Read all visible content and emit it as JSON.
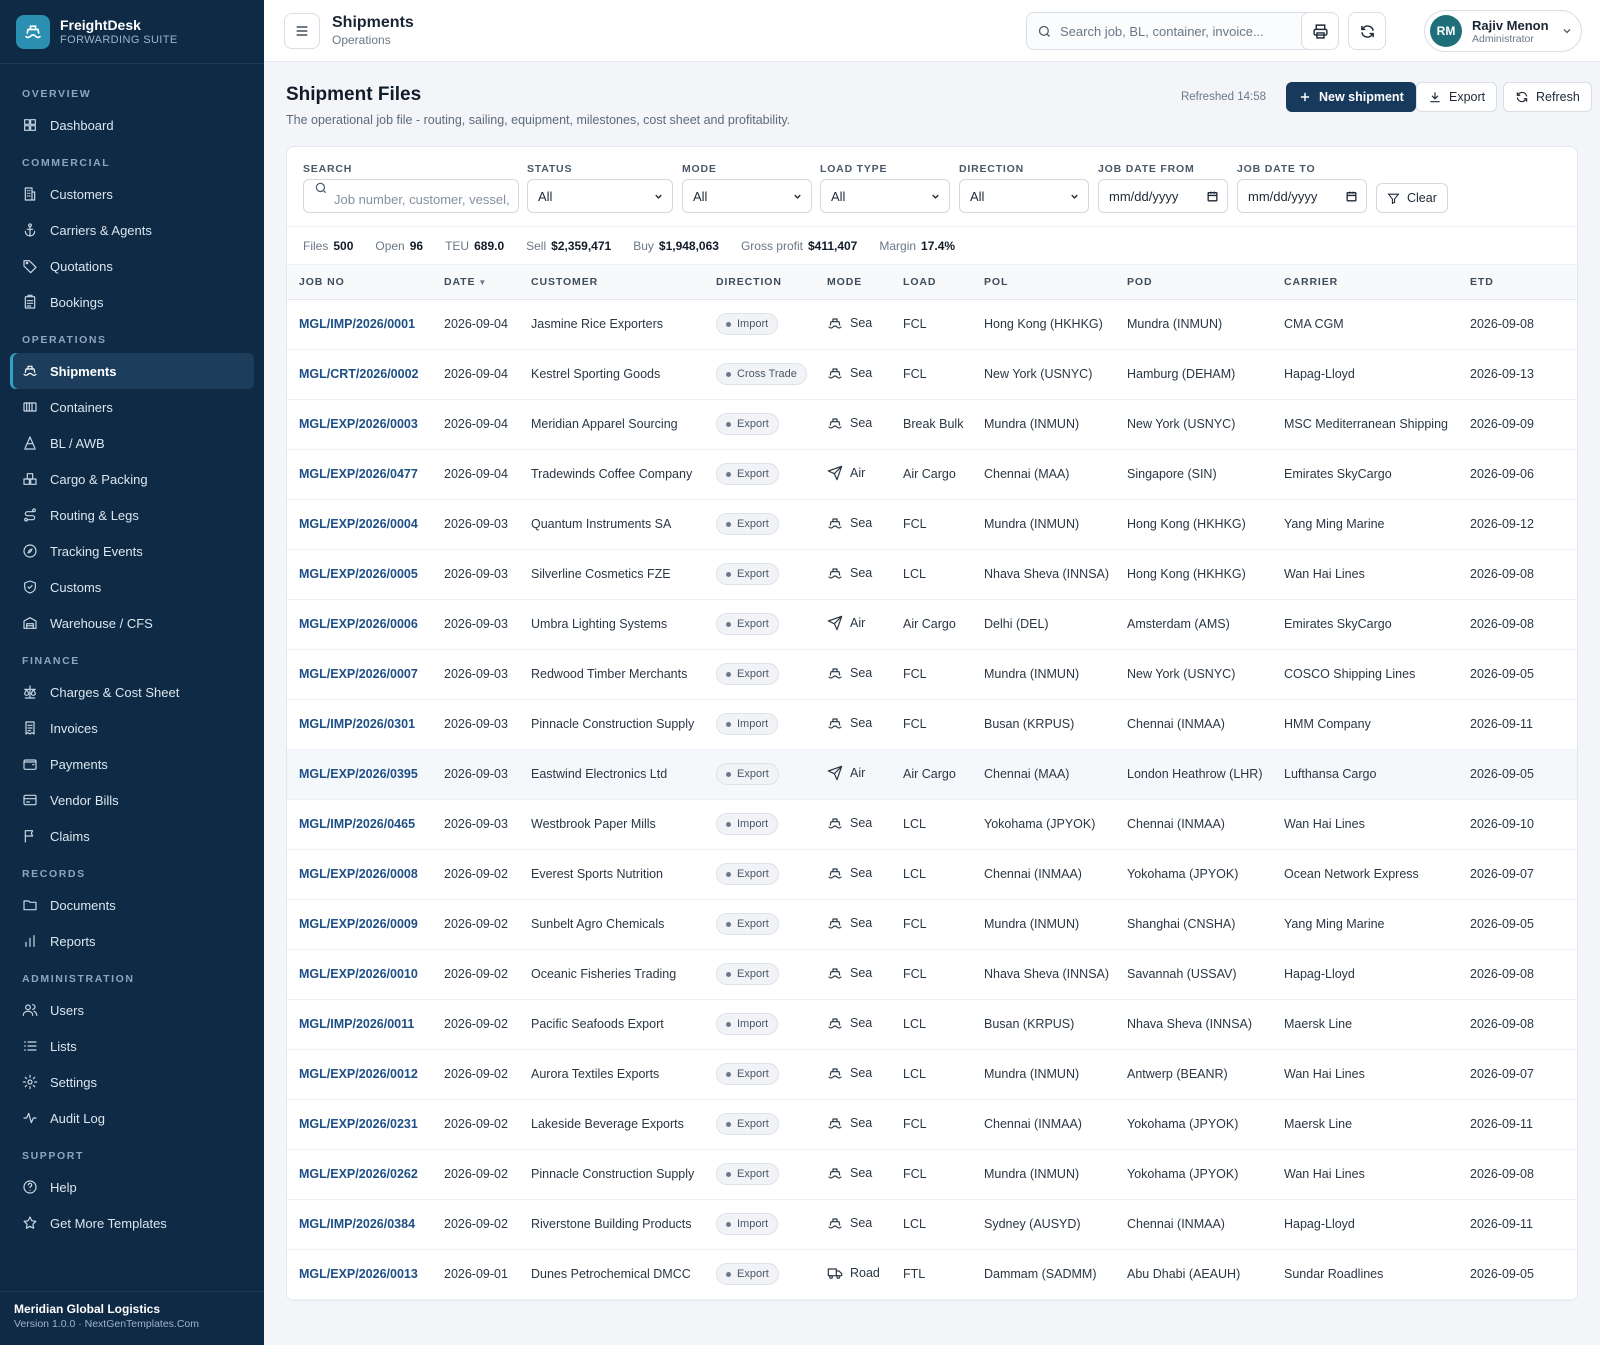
{
  "brand": {
    "name": "FreightDesk",
    "subtitle": "FORWARDING SUITE"
  },
  "sidebar": {
    "sections": [
      {
        "title": "OVERVIEW",
        "items": [
          {
            "label": "Dashboard",
            "icon": "dashboard-icon"
          }
        ]
      },
      {
        "title": "COMMERCIAL",
        "items": [
          {
            "label": "Customers",
            "icon": "building-icon"
          },
          {
            "label": "Carriers & Agents",
            "icon": "anchor-icon"
          },
          {
            "label": "Quotations",
            "icon": "tag-icon"
          },
          {
            "label": "Bookings",
            "icon": "clipboard-icon"
          }
        ]
      },
      {
        "title": "OPERATIONS",
        "items": [
          {
            "label": "Shipments",
            "icon": "ship-icon",
            "active": true
          },
          {
            "label": "Containers",
            "icon": "container-icon"
          },
          {
            "label": "BL / AWB",
            "icon": "bill-icon"
          },
          {
            "label": "Cargo & Packing",
            "icon": "boxes-icon"
          },
          {
            "label": "Routing & Legs",
            "icon": "route-icon"
          },
          {
            "label": "Tracking Events",
            "icon": "compass-icon"
          },
          {
            "label": "Customs",
            "icon": "shield-icon"
          },
          {
            "label": "Warehouse / CFS",
            "icon": "warehouse-icon"
          }
        ]
      },
      {
        "title": "FINANCE",
        "items": [
          {
            "label": "Charges & Cost Sheet",
            "icon": "scale-icon"
          },
          {
            "label": "Invoices",
            "icon": "invoice-icon"
          },
          {
            "label": "Payments",
            "icon": "wallet-icon"
          },
          {
            "label": "Vendor Bills",
            "icon": "card-icon"
          },
          {
            "label": "Claims",
            "icon": "flag-icon"
          }
        ]
      },
      {
        "title": "RECORDS",
        "items": [
          {
            "label": "Documents",
            "icon": "folder-icon"
          },
          {
            "label": "Reports",
            "icon": "bar-chart-icon"
          }
        ]
      },
      {
        "title": "ADMINISTRATION",
        "items": [
          {
            "label": "Users",
            "icon": "users-icon"
          },
          {
            "label": "Lists",
            "icon": "list-icon"
          },
          {
            "label": "Settings",
            "icon": "gear-icon"
          },
          {
            "label": "Audit Log",
            "icon": "activity-icon"
          }
        ]
      },
      {
        "title": "SUPPORT",
        "items": [
          {
            "label": "Help",
            "icon": "help-icon"
          },
          {
            "label": "Get More Templates",
            "icon": "star-icon"
          }
        ]
      }
    ],
    "footer": {
      "org": "Meridian Global Logistics",
      "version": "Version 1.0.0 · NextGenTemplates.Com"
    }
  },
  "topbar": {
    "title": "Shipments",
    "subtitle": "Operations",
    "search_placeholder": "Search job, BL, container, invoice...",
    "user": {
      "initials": "RM",
      "name": "Rajiv Menon",
      "role": "Administrator"
    }
  },
  "page": {
    "title": "Shipment Files",
    "description": "The operational job file - routing, sailing, equipment, milestones, cost sheet and profitability.",
    "refreshed": "Refreshed 14:58",
    "new_label": "New shipment",
    "export_label": "Export",
    "refresh_label": "Refresh"
  },
  "filters": {
    "search_label": "SEARCH",
    "search_placeholder": "Job number, customer, vessel, p",
    "status_label": "STATUS",
    "status_value": "All",
    "mode_label": "MODE",
    "mode_value": "All",
    "load_label": "LOAD TYPE",
    "load_value": "All",
    "direction_label": "DIRECTION",
    "direction_value": "All",
    "from_label": "JOB DATE FROM",
    "from_value": "mm/dd/yyyy",
    "to_label": "JOB DATE TO",
    "to_value": "mm/dd/yyyy",
    "clear_label": "Clear"
  },
  "stats": [
    {
      "label": "Files",
      "value": "500"
    },
    {
      "label": "Open",
      "value": "96"
    },
    {
      "label": "TEU",
      "value": "689.0"
    },
    {
      "label": "Sell",
      "value": "$2,359,471"
    },
    {
      "label": "Buy",
      "value": "$1,948,063"
    },
    {
      "label": "Gross profit",
      "value": "$411,407"
    },
    {
      "label": "Margin",
      "value": "17.4%"
    }
  ],
  "table": {
    "columns": [
      "JOB NO",
      "DATE",
      "CUSTOMER",
      "DIRECTION",
      "MODE",
      "LOAD",
      "POL",
      "POD",
      "CARRIER",
      "ETD"
    ],
    "rows": [
      [
        "MGL/IMP/2026/0001",
        "2026-09-04",
        "Jasmine Rice Exporters",
        "Import",
        "Sea",
        "FCL",
        "Hong Kong (HKHKG)",
        "Mundra (INMUN)",
        "CMA CGM",
        "2026-09-08"
      ],
      [
        "MGL/CRT/2026/0002",
        "2026-09-04",
        "Kestrel Sporting Goods",
        "Cross Trade",
        "Sea",
        "FCL",
        "New York (USNYC)",
        "Hamburg (DEHAM)",
        "Hapag-Lloyd",
        "2026-09-13"
      ],
      [
        "MGL/EXP/2026/0003",
        "2026-09-04",
        "Meridian Apparel Sourcing",
        "Export",
        "Sea",
        "Break Bulk",
        "Mundra (INMUN)",
        "New York (USNYC)",
        "MSC Mediterranean Shipping",
        "2026-09-09"
      ],
      [
        "MGL/EXP/2026/0477",
        "2026-09-04",
        "Tradewinds Coffee Company",
        "Export",
        "Air",
        "Air Cargo",
        "Chennai (MAA)",
        "Singapore (SIN)",
        "Emirates SkyCargo",
        "2026-09-06"
      ],
      [
        "MGL/EXP/2026/0004",
        "2026-09-03",
        "Quantum Instruments SA",
        "Export",
        "Sea",
        "FCL",
        "Mundra (INMUN)",
        "Hong Kong (HKHKG)",
        "Yang Ming Marine",
        "2026-09-12"
      ],
      [
        "MGL/EXP/2026/0005",
        "2026-09-03",
        "Silverline Cosmetics FZE",
        "Export",
        "Sea",
        "LCL",
        "Nhava Sheva (INNSA)",
        "Hong Kong (HKHKG)",
        "Wan Hai Lines",
        "2026-09-08"
      ],
      [
        "MGL/EXP/2026/0006",
        "2026-09-03",
        "Umbra Lighting Systems",
        "Export",
        "Air",
        "Air Cargo",
        "Delhi (DEL)",
        "Amsterdam (AMS)",
        "Emirates SkyCargo",
        "2026-09-08"
      ],
      [
        "MGL/EXP/2026/0007",
        "2026-09-03",
        "Redwood Timber Merchants",
        "Export",
        "Sea",
        "FCL",
        "Mundra (INMUN)",
        "New York (USNYC)",
        "COSCO Shipping Lines",
        "2026-09-05"
      ],
      [
        "MGL/IMP/2026/0301",
        "2026-09-03",
        "Pinnacle Construction Supply",
        "Import",
        "Sea",
        "FCL",
        "Busan (KRPUS)",
        "Chennai (INMAA)",
        "HMM Company",
        "2026-09-11"
      ],
      [
        "MGL/EXP/2026/0395",
        "2026-09-03",
        "Eastwind Electronics Ltd",
        "Export",
        "Air",
        "Air Cargo",
        "Chennai (MAA)",
        "London Heathrow (LHR)",
        "Lufthansa Cargo",
        "2026-09-05"
      ],
      [
        "MGL/IMP/2026/0465",
        "2026-09-03",
        "Westbrook Paper Mills",
        "Import",
        "Sea",
        "LCL",
        "Yokohama (JPYOK)",
        "Chennai (INMAA)",
        "Wan Hai Lines",
        "2026-09-10"
      ],
      [
        "MGL/EXP/2026/0008",
        "2026-09-02",
        "Everest Sports Nutrition",
        "Export",
        "Sea",
        "LCL",
        "Chennai (INMAA)",
        "Yokohama (JPYOK)",
        "Ocean Network Express",
        "2026-09-07"
      ],
      [
        "MGL/EXP/2026/0009",
        "2026-09-02",
        "Sunbelt Agro Chemicals",
        "Export",
        "Sea",
        "FCL",
        "Mundra (INMUN)",
        "Shanghai (CNSHA)",
        "Yang Ming Marine",
        "2026-09-05"
      ],
      [
        "MGL/EXP/2026/0010",
        "2026-09-02",
        "Oceanic Fisheries Trading",
        "Export",
        "Sea",
        "FCL",
        "Nhava Sheva (INNSA)",
        "Savannah (USSAV)",
        "Hapag-Lloyd",
        "2026-09-08"
      ],
      [
        "MGL/IMP/2026/0011",
        "2026-09-02",
        "Pacific Seafoods Export",
        "Import",
        "Sea",
        "LCL",
        "Busan (KRPUS)",
        "Nhava Sheva (INNSA)",
        "Maersk Line",
        "2026-09-08"
      ],
      [
        "MGL/EXP/2026/0012",
        "2026-09-02",
        "Aurora Textiles Exports",
        "Export",
        "Sea",
        "LCL",
        "Mundra (INMUN)",
        "Antwerp (BEANR)",
        "Wan Hai Lines",
        "2026-09-07"
      ],
      [
        "MGL/EXP/2026/0231",
        "2026-09-02",
        "Lakeside Beverage Exports",
        "Export",
        "Sea",
        "FCL",
        "Chennai (INMAA)",
        "Yokohama (JPYOK)",
        "Maersk Line",
        "2026-09-11"
      ],
      [
        "MGL/EXP/2026/0262",
        "2026-09-02",
        "Pinnacle Construction Supply",
        "Export",
        "Sea",
        "FCL",
        "Mundra (INMUN)",
        "Yokohama (JPYOK)",
        "Wan Hai Lines",
        "2026-09-08"
      ],
      [
        "MGL/IMP/2026/0384",
        "2026-09-02",
        "Riverstone Building Products",
        "Import",
        "Sea",
        "LCL",
        "Sydney (AUSYD)",
        "Chennai (INMAA)",
        "Hapag-Lloyd",
        "2026-09-11"
      ],
      [
        "MGL/EXP/2026/0013",
        "2026-09-01",
        "Dunes Petrochemical DMCC",
        "Export",
        "Road",
        "FTL",
        "Dammam (SADMM)",
        "Abu Dhabi (AEAUH)",
        "Sundar Roadlines",
        "2026-09-05"
      ]
    ],
    "highlighted_row": 9
  }
}
